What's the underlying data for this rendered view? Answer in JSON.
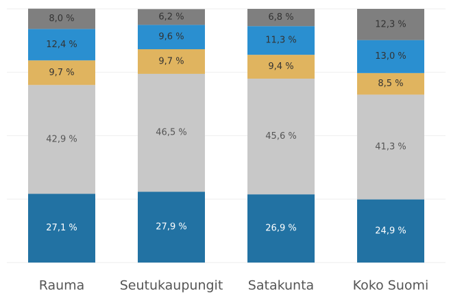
{
  "chart_data": {
    "type": "stacked_bar",
    "categories": [
      "Rauma",
      "Seutukaupungit",
      "Satakunta",
      "Koko Suomi"
    ],
    "series": [
      {
        "color": "#2272a3",
        "values": [
          27.1,
          27.9,
          26.9,
          24.9
        ],
        "value_labels": [
          "27,1 %",
          "27,9 %",
          "26,9 %",
          "24,9 %"
        ]
      },
      {
        "color": "#c8c8c8",
        "values": [
          42.9,
          46.5,
          45.6,
          41.3
        ],
        "value_labels": [
          "42,9 %",
          "46,5 %",
          "45,6 %",
          "41,3 %"
        ]
      },
      {
        "color": "#e0b45f",
        "values": [
          9.7,
          9.7,
          9.4,
          8.5
        ],
        "value_labels": [
          "9,7 %",
          "9,7 %",
          "9,4 %",
          "8,5 %"
        ]
      },
      {
        "color": "#2a8fd0",
        "values": [
          12.4,
          9.6,
          11.3,
          13.0
        ],
        "value_labels": [
          "12,4 %",
          "9,6 %",
          "11,3 %",
          "13,0 %"
        ]
      },
      {
        "color": "#7f7f7f",
        "values": [
          8.0,
          6.2,
          6.8,
          12.3
        ],
        "value_labels": [
          "8,0 %",
          "6,2 %",
          "6,8 %",
          "12,3 %"
        ]
      }
    ],
    "ylim": [
      0,
      100
    ],
    "yticks": [
      0,
      25,
      50,
      75,
      100
    ],
    "grid": true
  }
}
